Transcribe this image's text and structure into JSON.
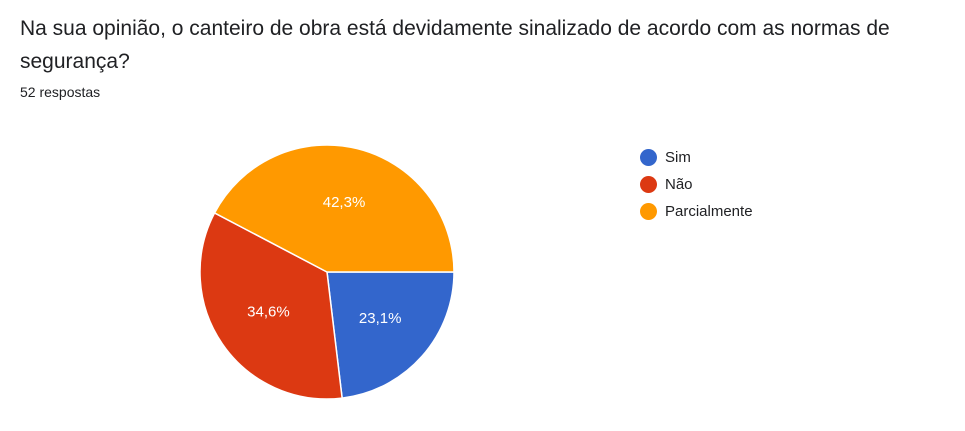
{
  "question": {
    "title": "Na sua opinião, o canteiro de obra está devidamente sinalizado de acordo com as normas de segurança?",
    "response_count": "52 respostas"
  },
  "chart_data": {
    "type": "pie",
    "categories": [
      "Sim",
      "Não",
      "Parcialmente"
    ],
    "values": [
      23.1,
      34.6,
      42.3
    ],
    "labels": [
      "23,1%",
      "34,6%",
      "42,3%"
    ],
    "colors": [
      "#3366cc",
      "#dc3912",
      "#ff9900"
    ],
    "legend": "right"
  }
}
